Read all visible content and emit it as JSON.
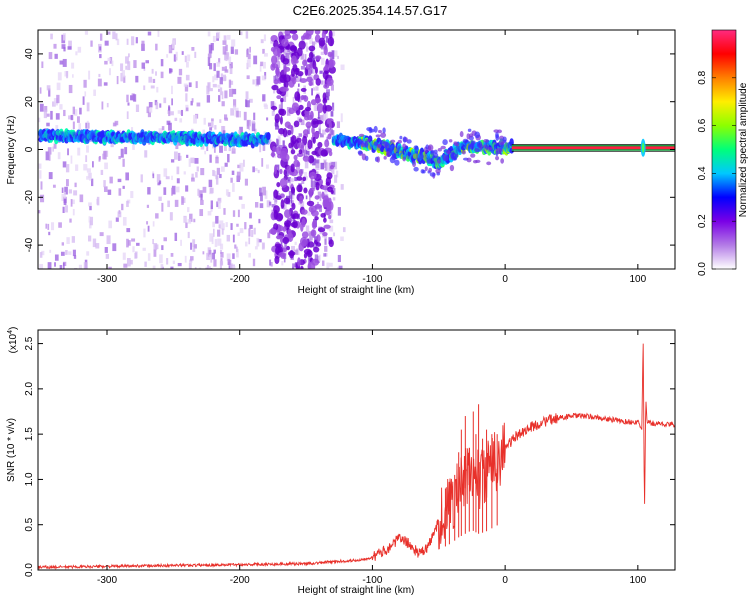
{
  "title": "C2E6.2025.354.14.57.G17",
  "chart_data": [
    {
      "type": "heatmap",
      "xlabel": "Height of straight line (km)",
      "ylabel": "Frequency (Hz)",
      "xlim": [
        -352,
        128
      ],
      "ylim": [
        -50,
        50
      ],
      "xticks": [
        -300,
        -200,
        -100,
        0,
        100
      ],
      "yticks": [
        -40,
        -20,
        0,
        20,
        40
      ],
      "colorbar": {
        "label": "Normalized spectral amplitude",
        "range": [
          0.0,
          1.0
        ],
        "ticks": [
          0.0,
          0.2,
          0.4,
          0.6,
          0.8
        ],
        "colors": [
          "#ffffff",
          "#b37be6",
          "#7a00e6",
          "#0000ff",
          "#00c8ff",
          "#00ff7a",
          "#8cff00",
          "#ffee00",
          "#ff7f00",
          "#ff0000",
          "#ff2a80"
        ]
      },
      "ridge": {
        "x": [
          -350,
          -300,
          -250,
          -200,
          -180,
          -130,
          -110,
          -90,
          -75,
          -60,
          -50,
          -40,
          -30,
          -20,
          -10,
          0,
          5,
          100,
          128
        ],
        "y": [
          6,
          5,
          5,
          4,
          4,
          4,
          3,
          1,
          -2,
          -3,
          -5,
          -2,
          2,
          1,
          1,
          1,
          1,
          0.5,
          0.5
        ]
      },
      "grid": false
    },
    {
      "type": "line",
      "xlabel": "Height of straight line (km)",
      "ylabel": "SNR (10 * v/v)",
      "yscale_note": "(x10",
      "yscale_exp": "4",
      "xlim": [
        -352,
        128
      ],
      "ylim": [
        0,
        2.65
      ],
      "xticks": [
        -300,
        -200,
        -100,
        0,
        100
      ],
      "yticks": [
        0.0,
        0.5,
        1.0,
        1.5,
        2.0,
        2.5
      ],
      "ytick_labels": [
        "0.0",
        "0.5",
        "1.0",
        "1.5",
        "2.0",
        "2.5"
      ],
      "series": [
        {
          "color": "#e8302a",
          "x": [
            -352,
            -300,
            -250,
            -200,
            -150,
            -130,
            -110,
            -100,
            -95,
            -90,
            -85,
            -80,
            -75,
            -70,
            -65,
            -60,
            -55,
            -50,
            -45,
            -40,
            -35,
            -30,
            -25,
            -20,
            -15,
            -10,
            -5,
            0,
            10,
            20,
            30,
            40,
            50,
            60,
            70,
            80,
            90,
            100,
            103,
            104,
            105,
            106,
            107,
            108,
            110,
            115,
            120,
            128
          ],
          "y": [
            0.03,
            0.04,
            0.05,
            0.06,
            0.07,
            0.09,
            0.11,
            0.14,
            0.18,
            0.22,
            0.28,
            0.35,
            0.32,
            0.25,
            0.18,
            0.22,
            0.35,
            0.55,
            0.65,
            0.75,
            0.9,
            1.0,
            1.1,
            1.0,
            1.05,
            1.15,
            1.25,
            1.35,
            1.5,
            1.58,
            1.64,
            1.68,
            1.7,
            1.7,
            1.68,
            1.66,
            1.64,
            1.63,
            1.55,
            2.6,
            0.6,
            1.9,
            1.62,
            1.63,
            1.62,
            1.62,
            1.61,
            1.6
          ]
        }
      ],
      "spikes": [
        {
          "x": -45,
          "y": 0.9
        },
        {
          "x": -42,
          "y": 0.8
        },
        {
          "x": -38,
          "y": 1.05
        },
        {
          "x": -35,
          "y": 1.3
        },
        {
          "x": -33,
          "y": 1.55
        },
        {
          "x": -30,
          "y": 1.7
        },
        {
          "x": -27,
          "y": 1.35
        },
        {
          "x": -24,
          "y": 1.75
        },
        {
          "x": -22,
          "y": 1.5
        },
        {
          "x": -20,
          "y": 1.83
        },
        {
          "x": -17,
          "y": 1.45
        },
        {
          "x": -14,
          "y": 1.55
        },
        {
          "x": -10,
          "y": 1.5
        },
        {
          "x": -6,
          "y": 1.5
        }
      ],
      "grid": false
    }
  ]
}
